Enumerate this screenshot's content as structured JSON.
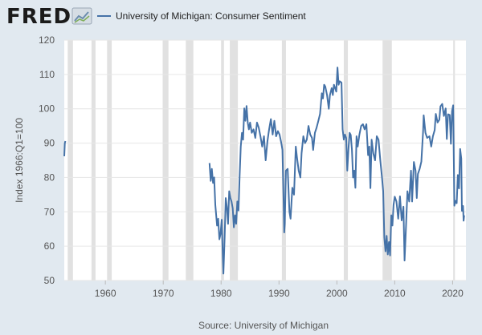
{
  "brand": {
    "name": "FRED",
    "logo_icon": "fred-line-chart-icon"
  },
  "legend": {
    "series_name": "University of Michigan: Consumer Sentiment",
    "color": "#4572a7"
  },
  "source_text": "Source: University of Michigan",
  "chart_data": {
    "type": "line",
    "title": "",
    "xlabel": "",
    "ylabel": "Index 1966:Q1=100",
    "xlim": [
      1952.9,
      2022.3
    ],
    "ylim": [
      50,
      120
    ],
    "yticks": [
      50,
      60,
      70,
      80,
      90,
      100,
      110,
      120
    ],
    "xticks": [
      1960,
      1970,
      1980,
      1990,
      2000,
      2010,
      2020
    ],
    "grid": "horizontal",
    "legend_position": "top-left",
    "recessions": [
      [
        1953.5,
        1954.4
      ],
      [
        1957.6,
        1958.3
      ],
      [
        1960.3,
        1961.1
      ],
      [
        1969.9,
        1970.9
      ],
      [
        1973.9,
        1975.2
      ],
      [
        1980.0,
        1980.5
      ],
      [
        1981.5,
        1982.9
      ],
      [
        1990.5,
        1991.2
      ],
      [
        2001.2,
        2001.9
      ],
      [
        2007.9,
        2009.5
      ],
      [
        2020.1,
        2020.4
      ]
    ],
    "series": [
      {
        "name": "University of Michigan: Consumer Sentiment",
        "segments": [
          [
            [
              1952.9,
              86.2
            ],
            [
              1953.0,
              90.0
            ],
            [
              1953.1,
              90.6
            ]
          ],
          [
            [
              1978.0,
              84.2
            ],
            [
              1978.2,
              79.0
            ],
            [
              1978.4,
              82.5
            ],
            [
              1978.6,
              78.4
            ],
            [
              1978.8,
              80.0
            ],
            [
              1979.0,
              72.1
            ],
            [
              1979.3,
              66.0
            ],
            [
              1979.5,
              68.0
            ],
            [
              1979.7,
              62.0
            ],
            [
              1979.9,
              63.5
            ],
            [
              1980.1,
              67.7
            ],
            [
              1980.3,
              56.5
            ],
            [
              1980.4,
              52.0
            ],
            [
              1980.6,
              62.3
            ],
            [
              1980.8,
              74.0
            ],
            [
              1981.0,
              71.4
            ],
            [
              1981.2,
              66.5
            ],
            [
              1981.4,
              76.0
            ],
            [
              1981.6,
              74.0
            ],
            [
              1981.8,
              73.0
            ],
            [
              1982.0,
              71.0
            ],
            [
              1982.2,
              65.5
            ],
            [
              1982.4,
              69.0
            ],
            [
              1982.6,
              66.5
            ],
            [
              1982.8,
              73.0
            ],
            [
              1983.0,
              70.4
            ],
            [
              1983.2,
              80.5
            ],
            [
              1983.4,
              89.0
            ],
            [
              1983.6,
              93.0
            ],
            [
              1983.8,
              91.0
            ],
            [
              1984.0,
              100.1
            ],
            [
              1984.2,
              96.5
            ],
            [
              1984.4,
              100.8
            ],
            [
              1984.6,
              96.0
            ],
            [
              1984.8,
              94.0
            ],
            [
              1985.0,
              96.0
            ],
            [
              1985.3,
              93.0
            ],
            [
              1985.6,
              94.0
            ],
            [
              1985.9,
              91.5
            ],
            [
              1986.2,
              96.0
            ],
            [
              1986.5,
              94.5
            ],
            [
              1986.8,
              92.0
            ],
            [
              1987.1,
              89.0
            ],
            [
              1987.4,
              92.0
            ],
            [
              1987.7,
              85.0
            ],
            [
              1988.0,
              90.5
            ],
            [
              1988.3,
              94.0
            ],
            [
              1988.6,
              97.0
            ],
            [
              1988.9,
              92.5
            ],
            [
              1989.2,
              96.5
            ],
            [
              1989.5,
              92.0
            ],
            [
              1989.8,
              93.5
            ],
            [
              1990.1,
              92.5
            ],
            [
              1990.4,
              90.0
            ],
            [
              1990.6,
              88.0
            ],
            [
              1990.8,
              72.5
            ],
            [
              1990.9,
              64.0
            ],
            [
              1991.0,
              66.5
            ],
            [
              1991.2,
              82.0
            ],
            [
              1991.5,
              82.5
            ],
            [
              1991.8,
              70.0
            ],
            [
              1992.0,
              68.0
            ],
            [
              1992.3,
              77.0
            ],
            [
              1992.6,
              75.0
            ],
            [
              1992.9,
              89.0
            ],
            [
              1993.1,
              86.0
            ],
            [
              1993.4,
              82.0
            ],
            [
              1993.7,
              80.0
            ],
            [
              1993.9,
              87.0
            ],
            [
              1994.2,
              92.0
            ],
            [
              1994.5,
              90.0
            ],
            [
              1994.8,
              91.0
            ],
            [
              1995.1,
              95.0
            ],
            [
              1995.4,
              92.5
            ],
            [
              1995.7,
              91.5
            ],
            [
              1995.9,
              88.0
            ],
            [
              1996.2,
              93.0
            ],
            [
              1996.5,
              94.5
            ],
            [
              1996.8,
              96.5
            ],
            [
              1997.1,
              98.5
            ],
            [
              1997.4,
              104.5
            ],
            [
              1997.6,
              103.0
            ],
            [
              1997.8,
              107.0
            ],
            [
              1998.0,
              106.5
            ],
            [
              1998.3,
              104.0
            ],
            [
              1998.6,
              100.0
            ],
            [
              1998.8,
              104.0
            ],
            [
              1999.1,
              106.0
            ],
            [
              1999.3,
              104.0
            ],
            [
              1999.5,
              107.0
            ],
            [
              1999.7,
              106.0
            ],
            [
              1999.9,
              105.0
            ],
            [
              2000.1,
              112.0
            ],
            [
              2000.3,
              107.0
            ],
            [
              2000.5,
              108.0
            ],
            [
              2000.8,
              107.6
            ],
            [
              2001.0,
              94.0
            ],
            [
              2001.2,
              91.0
            ],
            [
              2001.4,
              92.5
            ],
            [
              2001.6,
              91.5
            ],
            [
              2001.8,
              82.0
            ],
            [
              2002.0,
              88.0
            ],
            [
              2002.2,
              93.0
            ],
            [
              2002.4,
              92.4
            ],
            [
              2002.6,
              88.0
            ],
            [
              2002.8,
              80.0
            ],
            [
              2003.0,
              82.0
            ],
            [
              2003.2,
              77.0
            ],
            [
              2003.4,
              92.0
            ],
            [
              2003.6,
              89.0
            ],
            [
              2003.9,
              92.5
            ],
            [
              2004.2,
              95.0
            ],
            [
              2004.5,
              95.5
            ],
            [
              2004.8,
              94.0
            ],
            [
              2005.1,
              95.5
            ],
            [
              2005.4,
              86.5
            ],
            [
              2005.6,
              89.0
            ],
            [
              2005.8,
              76.9
            ],
            [
              2006.0,
              91.0
            ],
            [
              2006.3,
              87.0
            ],
            [
              2006.6,
              85.0
            ],
            [
              2006.9,
              92.0
            ],
            [
              2007.2,
              91.0
            ],
            [
              2007.5,
              85.0
            ],
            [
              2007.8,
              80.0
            ],
            [
              2008.0,
              76.0
            ],
            [
              2008.2,
              62.6
            ],
            [
              2008.4,
              58.5
            ],
            [
              2008.6,
              63.0
            ],
            [
              2008.8,
              57.6
            ],
            [
              2009.0,
              61.2
            ],
            [
              2009.2,
              57.3
            ],
            [
              2009.4,
              69.0
            ],
            [
              2009.6,
              66.0
            ],
            [
              2009.8,
              72.0
            ],
            [
              2010.0,
              74.4
            ],
            [
              2010.3,
              73.0
            ],
            [
              2010.6,
              68.0
            ],
            [
              2010.9,
              74.5
            ],
            [
              2011.2,
              67.5
            ],
            [
              2011.5,
              71.5
            ],
            [
              2011.7,
              55.8
            ],
            [
              2011.9,
              64.0
            ],
            [
              2012.2,
              76.0
            ],
            [
              2012.5,
              73.0
            ],
            [
              2012.8,
              82.0
            ],
            [
              2013.0,
              73.0
            ],
            [
              2013.3,
              84.5
            ],
            [
              2013.6,
              82.0
            ],
            [
              2013.8,
              74.0
            ],
            [
              2014.0,
              81.0
            ],
            [
              2014.3,
              82.5
            ],
            [
              2014.6,
              84.6
            ],
            [
              2014.9,
              93.5
            ],
            [
              2015.0,
              98.1
            ],
            [
              2015.3,
              93.0
            ],
            [
              2015.6,
              91.5
            ],
            [
              2016.0,
              92.0
            ],
            [
              2016.3,
              89.0
            ],
            [
              2016.6,
              92.0
            ],
            [
              2016.9,
              93.8
            ],
            [
              2017.1,
              98.5
            ],
            [
              2017.4,
              96.0
            ],
            [
              2017.7,
              96.8
            ],
            [
              2017.9,
              100.7
            ],
            [
              2018.2,
              101.4
            ],
            [
              2018.5,
              97.9
            ],
            [
              2018.8,
              100.1
            ],
            [
              2019.0,
              91.2
            ],
            [
              2019.2,
              98.4
            ],
            [
              2019.5,
              98.2
            ],
            [
              2019.7,
              89.8
            ],
            [
              2019.9,
              99.3
            ],
            [
              2020.1,
              101.0
            ],
            [
              2020.3,
              71.8
            ],
            [
              2020.5,
              73.2
            ],
            [
              2020.7,
              72.5
            ],
            [
              2020.9,
              80.7
            ],
            [
              2021.1,
              76.8
            ],
            [
              2021.3,
              88.3
            ],
            [
              2021.5,
              85.5
            ],
            [
              2021.6,
              70.3
            ],
            [
              2021.8,
              71.7
            ],
            [
              2021.9,
              67.4
            ],
            [
              2022.0,
              69.0
            ]
          ]
        ]
      }
    ]
  }
}
